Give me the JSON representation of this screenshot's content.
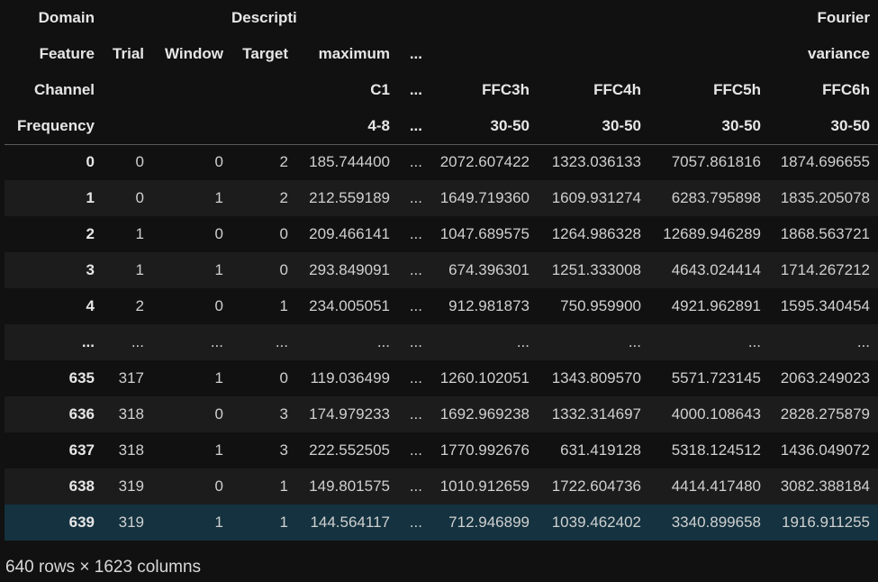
{
  "header": {
    "rows": [
      {
        "name": "Domain",
        "cells": [
          "",
          "",
          "Description",
          "",
          "",
          "",
          "",
          "",
          "Fourier"
        ]
      },
      {
        "name": "Feature",
        "cells": [
          "Trial",
          "Window",
          "Target",
          "maximum",
          "...",
          "",
          "",
          "",
          "variance"
        ]
      },
      {
        "name": "Channel",
        "cells": [
          "",
          "",
          "",
          "C1",
          "...",
          "FFC3h",
          "FFC4h",
          "FFC5h",
          "FFC6h"
        ]
      },
      {
        "name": "Frequency",
        "cells": [
          "",
          "",
          "",
          "4-8",
          "...",
          "30-50",
          "30-50",
          "30-50",
          "30-50"
        ]
      }
    ]
  },
  "rows": [
    {
      "index": "0",
      "cells": [
        "0",
        "0",
        "2",
        "185.744400",
        "...",
        "2072.607422",
        "1323.036133",
        "7057.861816",
        "1874.696655"
      ]
    },
    {
      "index": "1",
      "cells": [
        "0",
        "1",
        "2",
        "212.559189",
        "...",
        "1649.719360",
        "1609.931274",
        "6283.795898",
        "1835.205078"
      ]
    },
    {
      "index": "2",
      "cells": [
        "1",
        "0",
        "0",
        "209.466141",
        "...",
        "1047.689575",
        "1264.986328",
        "12689.946289",
        "1868.563721"
      ]
    },
    {
      "index": "3",
      "cells": [
        "1",
        "1",
        "0",
        "293.849091",
        "...",
        "674.396301",
        "1251.333008",
        "4643.024414",
        "1714.267212"
      ]
    },
    {
      "index": "4",
      "cells": [
        "2",
        "0",
        "1",
        "234.005051",
        "...",
        "912.981873",
        "750.959900",
        "4921.962891",
        "1595.340454"
      ]
    },
    {
      "index": "...",
      "cells": [
        "...",
        "...",
        "...",
        "...",
        "...",
        "...",
        "...",
        "...",
        "..."
      ]
    },
    {
      "index": "635",
      "cells": [
        "317",
        "1",
        "0",
        "119.036499",
        "...",
        "1260.102051",
        "1343.809570",
        "5571.723145",
        "2063.249023"
      ]
    },
    {
      "index": "636",
      "cells": [
        "318",
        "0",
        "3",
        "174.979233",
        "...",
        "1692.969238",
        "1332.314697",
        "4000.108643",
        "2828.275879"
      ]
    },
    {
      "index": "637",
      "cells": [
        "318",
        "1",
        "3",
        "222.552505",
        "...",
        "1770.992676",
        "631.419128",
        "5318.124512",
        "1436.049072"
      ]
    },
    {
      "index": "638",
      "cells": [
        "319",
        "0",
        "1",
        "149.801575",
        "...",
        "1010.912659",
        "1722.604736",
        "4414.417480",
        "3082.388184"
      ]
    },
    {
      "index": "639",
      "cells": [
        "319",
        "1",
        "1",
        "144.564117",
        "...",
        "712.946899",
        "1039.462402",
        "3340.899658",
        "1916.911255"
      ]
    }
  ],
  "selected_row": 10,
  "shape_text": "640 rows × 1623 columns"
}
